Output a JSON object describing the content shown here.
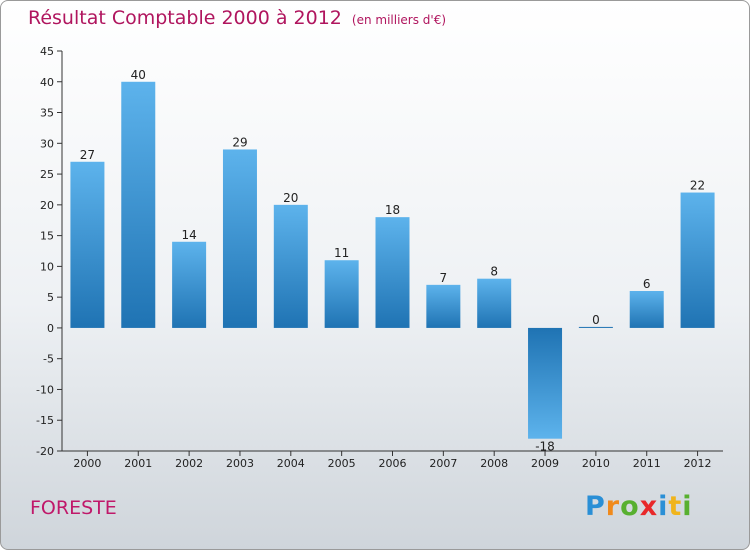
{
  "header": {
    "title": "Résultat Comptable 2000 à 2012",
    "unit": "(en milliers d'€)"
  },
  "town": "FORESTE",
  "logo": {
    "letters": [
      "P",
      "r",
      "o",
      "x",
      "i",
      "t",
      "i"
    ],
    "colors": [
      "#2a8fd6",
      "#f08a1c",
      "#58b030",
      "#e8282a",
      "#2a8fd6",
      "#f0b41c",
      "#58b030"
    ]
  },
  "chart_data": {
    "type": "bar",
    "title": "Résultat Comptable 2000 à 2012",
    "subtitle": "(en milliers d'€)",
    "xlabel": "",
    "ylabel": "",
    "categories": [
      "2000",
      "2001",
      "2002",
      "2003",
      "2004",
      "2005",
      "2006",
      "2007",
      "2008",
      "2009",
      "2010",
      "2011",
      "2012"
    ],
    "values": [
      27,
      40,
      14,
      29,
      20,
      11,
      18,
      7,
      8,
      -18,
      0,
      6,
      22
    ],
    "value_labels": [
      "27",
      "40",
      "14",
      "29",
      "20",
      "11",
      "18",
      "7",
      "8",
      "-18",
      "0",
      "6",
      "22"
    ],
    "ylim": [
      -20,
      45
    ],
    "yticks": [
      -20,
      -15,
      -10,
      -5,
      0,
      5,
      10,
      15,
      20,
      25,
      30,
      35,
      40,
      45
    ],
    "grid": false,
    "colors": {
      "bar_light": "#5db3ec",
      "bar_dark": "#1f73b3",
      "axis": "#333333"
    }
  }
}
